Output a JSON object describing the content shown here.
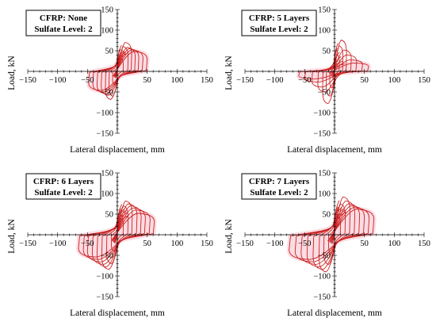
{
  "chart_data": [
    {
      "type": "line",
      "annotation": [
        "CFRP: None",
        "Sulfate Level: 2"
      ],
      "xlabel": "Lateral displacement, mm",
      "ylabel": "Load, kN",
      "xlim": [
        -150,
        150
      ],
      "ylim": [
        -150,
        150
      ],
      "xticks": [
        -150,
        -100,
        -50,
        50,
        100,
        150
      ],
      "yticks": [
        150,
        100,
        50,
        -50,
        -100,
        -150
      ],
      "grid": false,
      "series": [
        {
          "line_color": "#cc2222",
          "fill_color": "#fbd9e1",
          "loops": [
            {
              "dmax": 10,
              "dmin": -8,
              "ppos": 32,
              "pneg": -32
            },
            {
              "dmax": 18,
              "dmin": -14,
              "ppos": 60,
              "pneg": -60
            },
            {
              "dmax": 24,
              "dmin": -20,
              "ppos": 70,
              "pneg": -68
            },
            {
              "dmax": 30,
              "dmin": -27,
              "ppos": 58,
              "pneg": -58
            },
            {
              "dmax": 36,
              "dmin": -34,
              "ppos": 55,
              "pneg": -54
            },
            {
              "dmax": 43,
              "dmin": -41,
              "ppos": 52,
              "pneg": -50
            },
            {
              "dmax": 50,
              "dmin": -48,
              "ppos": 48,
              "pneg": -46
            }
          ]
        }
      ]
    },
    {
      "type": "line",
      "annotation": [
        "CFRP: 5 Layers",
        "Sulfate Level: 2"
      ],
      "xlabel": "Lateral displacement, mm",
      "ylabel": "Load, kN",
      "xlim": [
        -150,
        150
      ],
      "ylim": [
        -150,
        150
      ],
      "xticks": [
        -150,
        -100,
        -50,
        50,
        100,
        150
      ],
      "yticks": [
        150,
        100,
        50,
        -50,
        -100,
        -150
      ],
      "grid": false,
      "series": [
        {
          "line_color": "#cc2222",
          "fill_color": "#fbd9e1",
          "loops": [
            {
              "dmax": 8,
              "dmin": -8,
              "ppos": 40,
              "pneg": -40
            },
            {
              "dmax": 14,
              "dmin": -14,
              "ppos": 62,
              "pneg": -60
            },
            {
              "dmax": 20,
              "dmin": -20,
              "ppos": 76,
              "pneg": -78
            },
            {
              "dmax": 28,
              "dmin": -28,
              "ppos": 52,
              "pneg": -50
            },
            {
              "dmax": 37,
              "dmin": -38,
              "ppos": 40,
              "pneg": -38
            },
            {
              "dmax": 47,
              "dmin": -50,
              "ppos": 28,
              "pneg": -26
            },
            {
              "dmax": 57,
              "dmin": -60,
              "ppos": 20,
              "pneg": -18
            }
          ]
        }
      ]
    },
    {
      "type": "line",
      "annotation": [
        "CFRP: 6 Layers",
        "Sulfate Level: 2"
      ],
      "xlabel": "Lateral displacement, mm",
      "ylabel": "Load, kN",
      "xlim": [
        -150,
        150
      ],
      "ylim": [
        -150,
        150
      ],
      "xticks": [
        -150,
        -100,
        -50,
        50,
        100,
        150
      ],
      "yticks": [
        150,
        100,
        50,
        -50,
        -100,
        -150
      ],
      "grid": false,
      "series": [
        {
          "line_color": "#cc2222",
          "fill_color": "#fbd9e1",
          "loops": [
            {
              "dmax": 10,
              "dmin": -10,
              "ppos": 40,
              "pneg": -40
            },
            {
              "dmax": 18,
              "dmin": -18,
              "ppos": 70,
              "pneg": -70
            },
            {
              "dmax": 25,
              "dmin": -26,
              "ppos": 82,
              "pneg": -84
            },
            {
              "dmax": 33,
              "dmin": -34,
              "ppos": 75,
              "pneg": -78
            },
            {
              "dmax": 40,
              "dmin": -42,
              "ppos": 70,
              "pneg": -72
            },
            {
              "dmax": 47,
              "dmin": -50,
              "ppos": 65,
              "pneg": -66
            },
            {
              "dmax": 55,
              "dmin": -57,
              "ppos": 60,
              "pneg": -60
            },
            {
              "dmax": 62,
              "dmin": -65,
              "ppos": 52,
              "pneg": -54
            }
          ]
        }
      ]
    },
    {
      "type": "line",
      "annotation": [
        "CFRP: 7 Layers",
        "Sulfate Level: 2"
      ],
      "xlabel": "Lateral displacement, mm",
      "ylabel": "Load, kN",
      "xlim": [
        -150,
        150
      ],
      "ylim": [
        -150,
        150
      ],
      "xticks": [
        -150,
        -100,
        -50,
        50,
        100,
        150
      ],
      "yticks": [
        150,
        100,
        50,
        -50,
        -100,
        -150
      ],
      "grid": false,
      "series": [
        {
          "line_color": "#cc2222",
          "fill_color": "#fbd9e1",
          "loops": [
            {
              "dmax": 10,
              "dmin": -10,
              "ppos": 45,
              "pneg": -45
            },
            {
              "dmax": 18,
              "dmin": -18,
              "ppos": 75,
              "pneg": -72
            },
            {
              "dmax": 26,
              "dmin": -26,
              "ppos": 92,
              "pneg": -90
            },
            {
              "dmax": 34,
              "dmin": -36,
              "ppos": 82,
              "pneg": -84
            },
            {
              "dmax": 42,
              "dmin": -46,
              "ppos": 75,
              "pneg": -78
            },
            {
              "dmax": 50,
              "dmin": -56,
              "ppos": 70,
              "pneg": -72
            },
            {
              "dmax": 58,
              "dmin": -66,
              "ppos": 66,
              "pneg": -66
            },
            {
              "dmax": 66,
              "dmin": -76,
              "ppos": 62,
              "pneg": -60
            }
          ]
        }
      ]
    }
  ]
}
